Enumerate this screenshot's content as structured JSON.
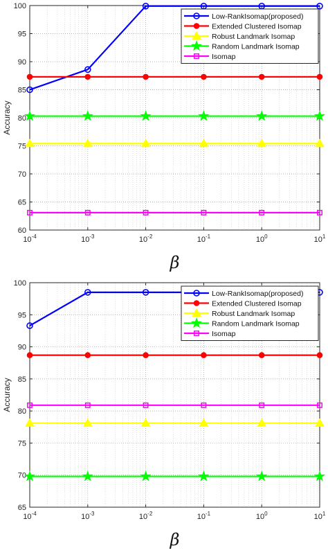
{
  "chart_data": [
    {
      "type": "line",
      "xscale": "log",
      "x": [
        0.0001,
        0.001,
        0.01,
        0.1,
        1,
        10
      ],
      "xtick_labels": [
        {
          "base": "10",
          "exp": "-4"
        },
        {
          "base": "10",
          "exp": "-3"
        },
        {
          "base": "10",
          "exp": "-2"
        },
        {
          "base": "10",
          "exp": "-1"
        },
        {
          "base": "10",
          "exp": "0"
        },
        {
          "base": "10",
          "exp": "1"
        }
      ],
      "xlabel": "β",
      "ylabel": "Accuracy",
      "ylim": [
        60,
        100
      ],
      "yticks": [
        60,
        65,
        70,
        75,
        80,
        85,
        90,
        95,
        100
      ],
      "grid": true,
      "legend_position": "top-right",
      "series": [
        {
          "name": "Low-RankIsomap(proposed)",
          "color": "#0000ff",
          "marker": "circle",
          "values": [
            85.0,
            88.6,
            99.9,
            99.9,
            99.9,
            99.9
          ]
        },
        {
          "name": "Extended Clustered Isomap",
          "color": "#ff0000",
          "marker": "dot",
          "values": [
            87.3,
            87.3,
            87.3,
            87.3,
            87.3,
            87.3
          ]
        },
        {
          "name": "Robust Landmark Isomap",
          "color": "#ffff00",
          "marker": "triangle",
          "values": [
            75.4,
            75.4,
            75.4,
            75.4,
            75.4,
            75.4
          ]
        },
        {
          "name": "Random Landmark Isomap",
          "color": "#00ff00",
          "marker": "star",
          "values": [
            80.3,
            80.3,
            80.3,
            80.3,
            80.3,
            80.3
          ]
        },
        {
          "name": "Isomap",
          "color": "#ff00ff",
          "marker": "square",
          "values": [
            63.1,
            63.1,
            63.1,
            63.1,
            63.1,
            63.1
          ]
        }
      ]
    },
    {
      "type": "line",
      "xscale": "log",
      "x": [
        0.0001,
        0.001,
        0.01,
        0.1,
        1,
        10
      ],
      "xtick_labels": [
        {
          "base": "10",
          "exp": "-4"
        },
        {
          "base": "10",
          "exp": "-3"
        },
        {
          "base": "10",
          "exp": "-2"
        },
        {
          "base": "10",
          "exp": "-1"
        },
        {
          "base": "10",
          "exp": "0"
        },
        {
          "base": "10",
          "exp": "1"
        }
      ],
      "xlabel": "β",
      "ylabel": "Accuracy",
      "ylim": [
        65,
        100
      ],
      "yticks": [
        65,
        70,
        75,
        80,
        85,
        90,
        95,
        100
      ],
      "grid": true,
      "legend_position": "top-right",
      "series": [
        {
          "name": "Low-RankIsomap(proposed)",
          "color": "#0000ff",
          "marker": "circle",
          "values": [
            93.3,
            98.5,
            98.5,
            98.5,
            98.5,
            98.5
          ]
        },
        {
          "name": "Extended Clustered Isomap",
          "color": "#ff0000",
          "marker": "dot",
          "values": [
            88.7,
            88.7,
            88.7,
            88.7,
            88.7,
            88.7
          ]
        },
        {
          "name": "Robust Landmark Isomap",
          "color": "#ffff00",
          "marker": "triangle",
          "values": [
            78.1,
            78.1,
            78.1,
            78.1,
            78.1,
            78.1
          ]
        },
        {
          "name": "Random Landmark Isomap",
          "color": "#00ff00",
          "marker": "star",
          "values": [
            69.8,
            69.8,
            69.8,
            69.8,
            69.8,
            69.8
          ]
        },
        {
          "name": "Isomap",
          "color": "#ff00ff",
          "marker": "square",
          "values": [
            80.9,
            80.9,
            80.9,
            80.9,
            80.9,
            80.9
          ]
        }
      ]
    }
  ]
}
